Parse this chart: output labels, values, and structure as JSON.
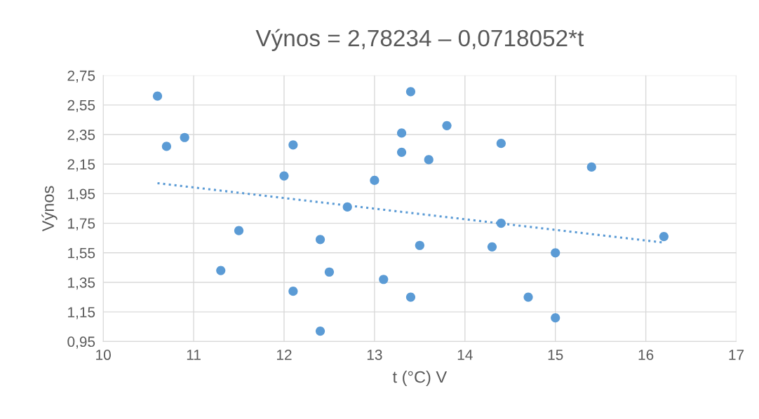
{
  "chart_data": {
    "type": "scatter",
    "title": "Výnos = 2,78234 – 0,0718052*t",
    "xlabel": "t (°C) V",
    "ylabel": "Výnos",
    "series": [
      {
        "color": "#5b9bd5",
        "marker": "circle",
        "x": [
          10.6,
          10.7,
          10.9,
          11.5,
          11.3,
          12.0,
          12.1,
          12.1,
          12.4,
          12.5,
          12.4,
          12.7,
          13.0,
          13.1,
          13.3,
          13.3,
          13.4,
          13.4,
          13.5,
          13.6,
          13.8,
          14.3,
          14.4,
          14.4,
          14.7,
          15.0,
          15.0,
          15.4,
          16.2
        ],
        "values": [
          2.61,
          2.27,
          2.33,
          1.7,
          1.43,
          2.07,
          2.28,
          1.29,
          1.64,
          1.42,
          1.02,
          1.86,
          2.04,
          1.37,
          2.36,
          2.23,
          2.64,
          1.25,
          1.6,
          2.18,
          2.41,
          1.59,
          2.29,
          1.75,
          1.25,
          1.55,
          1.11,
          2.13,
          1.66
        ]
      },
      {
        "type": "line",
        "color": "#5b9bd5",
        "line_style": "dotted",
        "marker": "none",
        "x": [
          10.6,
          16.2
        ],
        "values": [
          2.021,
          1.619
        ]
      }
    ],
    "xlim": [
      10,
      17
    ],
    "xticks": [
      10,
      11,
      12,
      13,
      14,
      15,
      16,
      17
    ],
    "ylim": [
      0.95,
      2.75
    ],
    "yticks": [
      {
        "value": 0.95,
        "label": "0,95"
      },
      {
        "value": 1.15,
        "label": "1,15"
      },
      {
        "value": 1.35,
        "label": "1,35"
      },
      {
        "value": 1.55,
        "label": "1,55"
      },
      {
        "value": 1.75,
        "label": "1,75"
      },
      {
        "value": 1.95,
        "label": "1,95"
      },
      {
        "value": 2.15,
        "label": "2,15"
      },
      {
        "value": 2.35,
        "label": "2,35"
      },
      {
        "value": 2.55,
        "label": "2,55"
      },
      {
        "value": 2.75,
        "label": "2,75"
      }
    ],
    "grid": true,
    "legend": false
  }
}
